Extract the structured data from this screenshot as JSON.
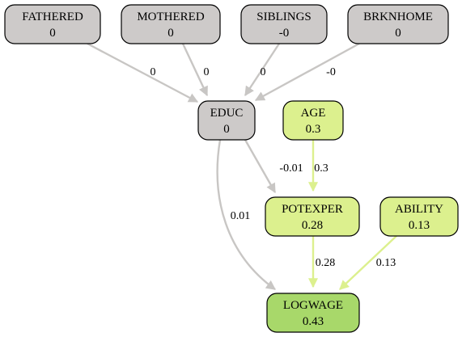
{
  "diagram": {
    "nodes": [
      {
        "id": "FATHERED",
        "label": "FATHERED",
        "value": "0",
        "fill": "#cdcac9"
      },
      {
        "id": "MOTHERED",
        "label": "MOTHERED",
        "value": "0",
        "fill": "#cdcac9"
      },
      {
        "id": "SIBLINGS",
        "label": "SIBLINGS",
        "value": "-0",
        "fill": "#cdcac9"
      },
      {
        "id": "BRKNHOME",
        "label": "BRKNHOME",
        "value": "0",
        "fill": "#cdcac9"
      },
      {
        "id": "EDUC",
        "label": "EDUC",
        "value": "0",
        "fill": "#cdcac9"
      },
      {
        "id": "AGE",
        "label": "AGE",
        "value": "0.3",
        "fill": "#dcf08e"
      },
      {
        "id": "POTEXPER",
        "label": "POTEXPER",
        "value": "0.28",
        "fill": "#dcf08e"
      },
      {
        "id": "ABILITY",
        "label": "ABILITY",
        "value": "0.13",
        "fill": "#dcf08e"
      },
      {
        "id": "LOGWAGE",
        "label": "LOGWAGE",
        "value": "0.43",
        "fill": "#a8d86a"
      }
    ],
    "edges": [
      {
        "from": "FATHERED",
        "to": "EDUC",
        "label": "0",
        "color": "#c8c6c4"
      },
      {
        "from": "MOTHERED",
        "to": "EDUC",
        "label": "0",
        "color": "#c8c6c4"
      },
      {
        "from": "SIBLINGS",
        "to": "EDUC",
        "label": "0",
        "color": "#c8c6c4"
      },
      {
        "from": "BRKNHOME",
        "to": "EDUC",
        "label": "-0",
        "color": "#c8c6c4"
      },
      {
        "from": "EDUC",
        "to": "POTEXPER",
        "label": "-0.01",
        "color": "#c8c6c4"
      },
      {
        "from": "EDUC",
        "to": "LOGWAGE",
        "label": "0.01",
        "color": "#c8c6c4"
      },
      {
        "from": "AGE",
        "to": "POTEXPER",
        "label": "0.3",
        "color": "#dcf08e"
      },
      {
        "from": "POTEXPER",
        "to": "LOGWAGE",
        "label": "0.28",
        "color": "#dcf08e"
      },
      {
        "from": "ABILITY",
        "to": "LOGWAGE",
        "label": "0.13",
        "color": "#dcf08e"
      }
    ]
  }
}
